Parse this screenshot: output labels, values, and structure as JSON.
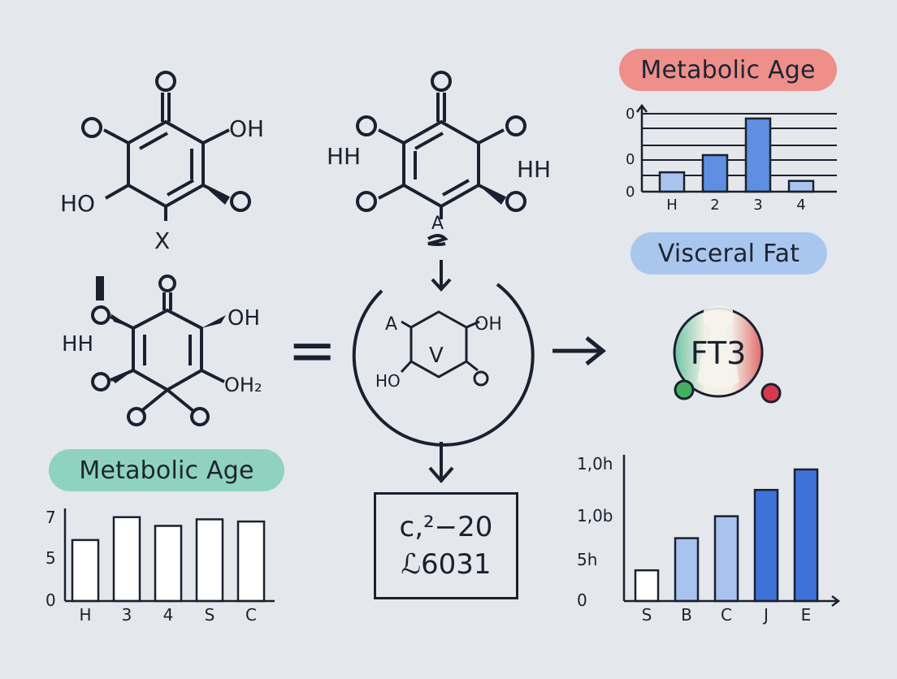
{
  "molecules": {
    "top_left": {
      "o_top": "O",
      "o_left": "O",
      "oh_right": "OH",
      "ho_left": "HO",
      "o_right": "O",
      "x_label": "X"
    },
    "top_middle": {
      "o_top": "O",
      "o_left": "O",
      "o_right": "O",
      "hh_left": "HH",
      "hh_right": "HH",
      "o_bottom_left": "O",
      "o_bottom_right": "O",
      "a_label": "A"
    },
    "middle_left": {
      "o_top": "O",
      "oh_right": "OH",
      "hh_left": "HH",
      "o_left": "O",
      "o_left_bottom": "O",
      "oh2_right": "OH₂",
      "o_bottom1": "O",
      "o_bottom2": "O"
    },
    "circle_ring": {
      "a_label": "A",
      "oh_label": "OH",
      "ho_label": "HO",
      "o_label": "O",
      "v_label": "V"
    },
    "badge": {
      "label": "FT3"
    }
  },
  "equals_symbol": "=",
  "formula_box": {
    "line1": "c,²−20",
    "line2": "ℒ6031"
  },
  "pills": {
    "top_right": "Metabolic Age",
    "mid_right": "Visceral Fat",
    "bottom_left": "Metabolic Age"
  },
  "colors": {
    "background": "#e4e8ec",
    "ink": "#1b2030",
    "pill_red": "#ee8f8a",
    "pill_blue": "#a9c7ee",
    "pill_green": "#8fd3bf",
    "bar_blue_light": "#a9c3ef",
    "bar_blue_mid": "#5f8fe0",
    "bar_blue_dark": "#3f72d8",
    "bar_white": "#ffffff"
  },
  "chart_data": [
    {
      "type": "bar",
      "categories": [
        "H",
        "2",
        "3",
        "4"
      ],
      "values": [
        0.45,
        0.85,
        1.7,
        0.25
      ],
      "y_tick_labels": [
        "0",
        "0",
        "0"
      ],
      "ylim": [
        0,
        2.0
      ],
      "grid": true
    },
    {
      "type": "bar",
      "categories": [
        "H",
        "3",
        "4",
        "S",
        "C"
      ],
      "values": [
        5.6,
        7.7,
        6.9,
        7.5,
        7.3
      ],
      "y_tick_labels": [
        "7",
        "5",
        "0"
      ],
      "ylim": [
        0,
        8.5
      ],
      "grid": false
    },
    {
      "type": "bar",
      "categories": [
        "S",
        "B",
        "C",
        "J",
        "E"
      ],
      "values": [
        2.1,
        4.3,
        5.8,
        7.6,
        9.0
      ],
      "y_tick_labels": [
        "1,0h",
        "1,0b",
        "5h",
        "0"
      ],
      "ylim": [
        0,
        10
      ],
      "grid": false
    }
  ]
}
